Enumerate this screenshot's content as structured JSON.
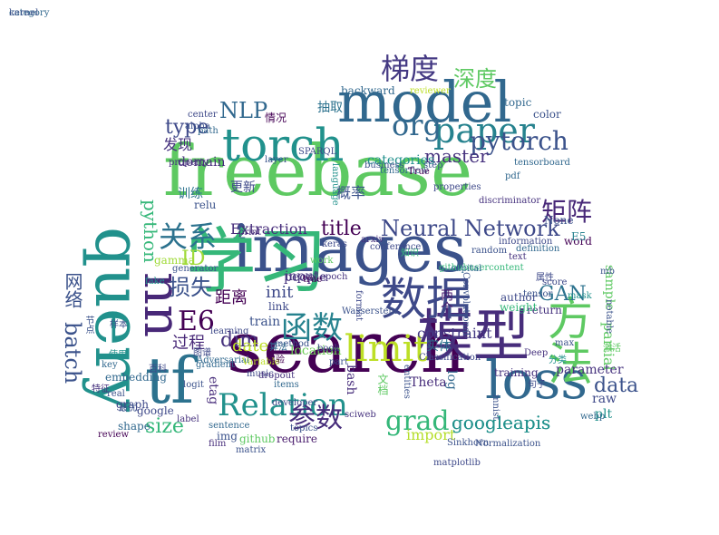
{
  "words": [
    {
      "text": "freebase",
      "color": "#5ec962"
    },
    {
      "text": "images",
      "color": "#3b528b"
    },
    {
      "text": "search",
      "color": "#440154"
    },
    {
      "text": "学习",
      "color": "#35b779"
    },
    {
      "text": "query",
      "color": "#21918c"
    },
    {
      "text": "model",
      "color": "#31688e"
    },
    {
      "text": "模型",
      "color": "#472d7b"
    },
    {
      "text": "tf",
      "color": "#2c728e"
    },
    {
      "text": "torch",
      "color": "#21918c"
    },
    {
      "text": "nn",
      "color": "#482878"
    },
    {
      "text": "loss",
      "color": "#31688e"
    },
    {
      "text": "方法",
      "color": "#5ec962"
    },
    {
      "text": "数据",
      "color": "#3e4989"
    },
    {
      "text": "paper",
      "color": "#26828e"
    },
    {
      "text": "梯度",
      "color": "#443983"
    },
    {
      "text": "Relation",
      "color": "#21918c"
    },
    {
      "text": "limit",
      "color": "#bddf26"
    },
    {
      "text": "函数",
      "color": "#26828e"
    },
    {
      "text": "grad",
      "color": "#35b779"
    },
    {
      "text": "参数",
      "color": "#472d7b"
    },
    {
      "text": "org",
      "color": "#31688e"
    },
    {
      "text": "pytorch",
      "color": "#3b528b"
    },
    {
      "text": "Neural Network",
      "color": "#3e4989"
    },
    {
      "text": "关系",
      "color": "#2c728e"
    },
    {
      "text": "googleapis",
      "color": "#21918c"
    },
    {
      "text": "batch",
      "color": "#3b528b"
    },
    {
      "text": "E6",
      "color": "#440154"
    },
    {
      "text": "size",
      "color": "#35b779"
    },
    {
      "text": "深度",
      "color": "#5ec962"
    },
    {
      "text": "NLP",
      "color": "#31688e"
    },
    {
      "text": "master",
      "color": "#46327e"
    },
    {
      "text": "data",
      "color": "#3b528b"
    },
    {
      "text": "GAN",
      "color": "#2c728e"
    },
    {
      "text": "矩阵",
      "color": "#482878"
    },
    {
      "text": "type",
      "color": "#3e4989"
    },
    {
      "text": "title",
      "color": "#440154"
    },
    {
      "text": "损失",
      "color": "#3b528b"
    },
    {
      "text": "dim",
      "color": "#46327e"
    },
    {
      "text": "Extraction",
      "color": "#472d7b"
    },
    {
      "text": "init",
      "color": "#3e4989"
    },
    {
      "text": "partial",
      "color": "#5ec962"
    },
    {
      "text": "ID",
      "color": "#a0da39"
    },
    {
      "text": "date",
      "color": "#bddf26"
    },
    {
      "text": "python",
      "color": "#35b779"
    },
    {
      "text": "网络",
      "color": "#3b528b"
    },
    {
      "text": "过程",
      "color": "#482878"
    },
    {
      "text": "距离",
      "color": "#440154"
    },
    {
      "text": "constraint",
      "color": "#443983"
    },
    {
      "text": "import",
      "color": "#b5de2b"
    },
    {
      "text": "plt",
      "color": "#21918c"
    },
    {
      "text": "raw",
      "color": "#3e4989"
    },
    {
      "text": "Theta",
      "color": "#472d7b"
    },
    {
      "text": "location",
      "color": "#6ece58"
    },
    {
      "text": "etag",
      "color": "#472d7b"
    },
    {
      "text": "categories",
      "color": "#21918c"
    },
    {
      "text": "发现",
      "color": "#46327e"
    },
    {
      "text": "实体",
      "color": "#2c728e"
    },
    {
      "text": "log",
      "color": "#31688e"
    },
    {
      "text": "parameter",
      "color": "#46327e"
    },
    {
      "text": "embedding",
      "color": "#31688e"
    },
    {
      "text": "people",
      "color": "#46327e"
    },
    {
      "text": "train",
      "color": "#3b528b"
    },
    {
      "text": "sample",
      "color": "#5ec962"
    },
    {
      "text": "topic",
      "color": "#31688e"
    },
    {
      "text": "color",
      "color": "#3b528b"
    },
    {
      "text": "word",
      "color": "#440154"
    },
    {
      "text": "None",
      "color": "#3b528b"
    },
    {
      "text": "E5",
      "color": "#26828e"
    },
    {
      "text": "两个",
      "color": "#481a6c"
    },
    {
      "text": "author",
      "color": "#3e4989"
    },
    {
      "text": "return",
      "color": "#46327e"
    },
    {
      "text": "weight",
      "color": "#35b779"
    },
    {
      "text": "bash",
      "color": "#472d7b"
    },
    {
      "text": "训练",
      "color": "#2c728e"
    },
    {
      "text": "input",
      "color": "#46327e"
    },
    {
      "text": "link",
      "color": "#3e4989"
    },
    {
      "text": "relu",
      "color": "#3b528b"
    },
    {
      "text": "domain",
      "color": "#472d7b"
    },
    {
      "text": "更新",
      "color": "#3e4989"
    },
    {
      "text": "概率",
      "color": "#3b528b"
    },
    {
      "text": "抽取",
      "color": "#2c728e"
    },
    {
      "text": "backward",
      "color": "#31688e"
    },
    {
      "text": "googleapis",
      "color": "#21918c"
    },
    {
      "text": "google",
      "color": "#3e4989"
    },
    {
      "text": "img",
      "color": "#3b528b"
    },
    {
      "text": "github",
      "color": "#5ec962"
    },
    {
      "text": "require",
      "color": "#481a6c"
    },
    {
      "text": "Sinkhorn",
      "color": "#3b528b"
    },
    {
      "text": "Normalization",
      "color": "#3b528b"
    },
    {
      "text": "training",
      "color": "#46327e"
    },
    {
      "text": "shape",
      "color": "#31688e"
    },
    {
      "text": "review",
      "color": "#440154"
    },
    {
      "text": "graph",
      "color": "#3e4989"
    },
    {
      "text": "generator",
      "color": "#3b528b"
    },
    {
      "text": "fake",
      "color": "#21918c"
    },
    {
      "text": "gamma",
      "color": "#a0da39"
    },
    {
      "text": "learning",
      "color": "#3e4989"
    },
    {
      "text": "sentence",
      "color": "#31688e"
    },
    {
      "text": "film",
      "color": "#472d7b"
    },
    {
      "text": "label",
      "color": "#46327e"
    },
    {
      "text": "Adversarial",
      "color": "#31688e"
    },
    {
      "text": "center",
      "color": "#3e4989"
    },
    {
      "text": "alpha",
      "color": "#3b528b"
    },
    {
      "text": "情况",
      "color": "#440154"
    },
    {
      "text": "language",
      "color": "#21918c"
    },
    {
      "text": "mnist",
      "color": "#3b528b"
    },
    {
      "text": "句子",
      "color": "#3e4989"
    },
    {
      "text": "webp",
      "color": "#31688e"
    },
    {
      "text": "mb",
      "color": "#3b528b"
    },
    {
      "text": "Variable",
      "color": "#bddf26"
    },
    {
      "text": "arxiv",
      "color": "#46327e"
    },
    {
      "text": "tensorflow",
      "color": "#31688e"
    },
    {
      "text": "layer",
      "color": "#3b528b"
    },
    {
      "text": "print",
      "color": "#472d7b"
    },
    {
      "text": "keras",
      "color": "#3e4989"
    },
    {
      "text": "epoch",
      "color": "#46327e"
    },
    {
      "text": "method",
      "color": "#3b528b"
    },
    {
      "text": "items",
      "color": "#31688e"
    },
    {
      "text": "developer",
      "color": "#3e4989"
    },
    {
      "text": "Deep",
      "color": "#46327e"
    },
    {
      "text": "Classification",
      "color": "#3e4989"
    },
    {
      "text": "tensor",
      "color": "#3b528b"
    },
    {
      "text": "mask",
      "color": "#21918c"
    },
    {
      "text": "step",
      "color": "#3b528b"
    },
    {
      "text": "pdf",
      "color": "#31688e"
    },
    {
      "text": "True",
      "color": "#440154"
    },
    {
      "text": "format",
      "color": "#3e4989"
    },
    {
      "text": "文档",
      "color": "#5ec962"
    },
    {
      "text": "知识",
      "color": "#35b779"
    },
    {
      "text": "百科",
      "color": "#3e4989"
    },
    {
      "text": "特征",
      "color": "#46327e"
    },
    {
      "text": "样本",
      "color": "#3b528b"
    },
    {
      "text": "图谱",
      "color": "#3e4989"
    },
    {
      "text": "算法",
      "color": "#31688e"
    },
    {
      "text": "实验",
      "color": "#440154"
    },
    {
      "text": "使用",
      "color": "#21918c"
    },
    {
      "text": "最优",
      "color": "#3b528b"
    },
    {
      "text": "激活",
      "color": "#5ec962"
    },
    {
      "text": "分类",
      "color": "#21918c"
    },
    {
      "text": "属性",
      "color": "#3e4989"
    },
    {
      "text": "节点",
      "color": "#3b528b"
    },
    {
      "text": "Wasserstein",
      "color": "#3b528b"
    },
    {
      "text": "discriminator",
      "color": "#46327e"
    },
    {
      "text": "SPARQL",
      "color": "#3e4989"
    },
    {
      "text": "githubusercontent",
      "color": "#35b779"
    },
    {
      "text": "definition",
      "color": "#31688e"
    },
    {
      "text": "matrix",
      "color": "#3b528b"
    },
    {
      "text": "sciweb",
      "color": "#46327e"
    },
    {
      "text": "topics",
      "color": "#3b528b"
    },
    {
      "text": "conference",
      "color": "#3e4989"
    },
    {
      "text": "key",
      "color": "#31688e"
    },
    {
      "text": "real",
      "color": "#3b528b"
    },
    {
      "text": "gradient",
      "color": "#31688e"
    },
    {
      "text": "music",
      "color": "#3e4989"
    },
    {
      "text": "logit",
      "color": "#3b528b"
    },
    {
      "text": "work",
      "color": "#5ec962"
    },
    {
      "text": "true",
      "color": "#440154"
    },
    {
      "text": "book",
      "color": "#3e4989"
    },
    {
      "text": "part",
      "color": "#3b528b"
    },
    {
      "text": "text",
      "color": "#46327e"
    },
    {
      "text": "path",
      "color": "#31688e"
    },
    {
      "text": "max",
      "color": "#3b528b"
    },
    {
      "text": "score",
      "color": "#3e4989"
    },
    {
      "text": "notable",
      "color": "#3b528b"
    },
    {
      "text": "reviewer",
      "color": "#bddf26"
    },
    {
      "text": "properties",
      "color": "#3e4989"
    },
    {
      "text": "business",
      "color": "#3b528b"
    },
    {
      "text": "capital",
      "color": "#31688e"
    },
    {
      "text": "dropout",
      "color": "#46327e"
    },
    {
      "text": "entities",
      "color": "#3b528b"
    },
    {
      "text": "information",
      "color": "#3e4989"
    },
    {
      "text": "tensorboard",
      "color": "#31688e"
    },
    {
      "text": "Convolutional",
      "color": "#3b528b"
    },
    {
      "text": "property",
      "color": "#46327e"
    },
    {
      "text": "matplotlib",
      "color": "#3e4989"
    },
    {
      "text": "random",
      "color": "#3b528b"
    },
    {
      "text": "category",
      "color": "#31688e"
    },
    {
      "text": "kernel",
      "color": "#3b528b"
    }
  ]
}
